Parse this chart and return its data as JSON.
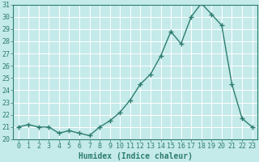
{
  "x": [
    0,
    1,
    2,
    3,
    4,
    5,
    6,
    7,
    8,
    9,
    10,
    11,
    12,
    13,
    14,
    15,
    16,
    17,
    18,
    19,
    20,
    21,
    22,
    23
  ],
  "y": [
    21,
    21.2,
    21,
    21,
    20.5,
    20.7,
    20.5,
    20.3,
    21,
    21.5,
    22.2,
    23.2,
    24.5,
    25.3,
    26.8,
    28.8,
    27.8,
    30,
    31.1,
    30.2,
    29.3,
    24.5,
    21.7,
    21
  ],
  "xlabel": "Humidex (Indice chaleur)",
  "ylim": [
    20,
    31
  ],
  "xlim": [
    -0.5,
    23.5
  ],
  "yticks": [
    20,
    21,
    22,
    23,
    24,
    25,
    26,
    27,
    28,
    29,
    30,
    31
  ],
  "xticks": [
    0,
    1,
    2,
    3,
    4,
    5,
    6,
    7,
    8,
    9,
    10,
    11,
    12,
    13,
    14,
    15,
    16,
    17,
    18,
    19,
    20,
    21,
    22,
    23
  ],
  "line_color": "#2d7d6f",
  "marker": "+",
  "marker_size": 4,
  "marker_linewidth": 1.0,
  "linewidth": 1.0,
  "bg_color": "#c5eaea",
  "grid_color": "#ffffff",
  "tick_color": "#2d7d6f",
  "label_color": "#2d7d6f",
  "xlabel_fontsize": 7,
  "tick_fontsize": 6,
  "spine_linewidth": 0.8
}
